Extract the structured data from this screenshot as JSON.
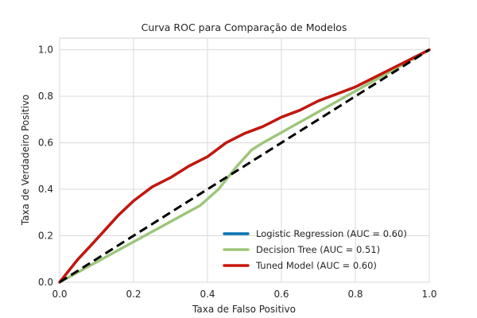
{
  "chart_data": {
    "type": "line",
    "title": "Curva ROC para Comparação de Modelos",
    "xlabel": "Taxa de Falso Positivo",
    "ylabel": "Taxa de Verdadeiro Positivo",
    "xlim": [
      0.0,
      1.0
    ],
    "ylim": [
      0.0,
      1.05
    ],
    "xticks": [
      0.0,
      0.2,
      0.4,
      0.6,
      0.8,
      1.0
    ],
    "yticks": [
      0.0,
      0.2,
      0.4,
      0.6,
      0.8,
      1.0
    ],
    "xtick_labels": [
      "0.0",
      "0.2",
      "0.4",
      "0.6",
      "0.8",
      "1.0"
    ],
    "ytick_labels": [
      "0.0",
      "0.2",
      "0.4",
      "0.6",
      "0.8",
      "1.0"
    ],
    "grid": true,
    "legend_position": "lower-right",
    "series": [
      {
        "name": "Logistic Regression (AUC = 0.60)",
        "color": "#0072b2",
        "x": [
          0.0,
          0.02,
          0.05,
          0.08,
          0.12,
          0.16,
          0.2,
          0.25,
          0.3,
          0.35,
          0.4,
          0.45,
          0.5,
          0.55,
          0.6,
          0.65,
          0.7,
          0.75,
          0.8,
          0.85,
          0.9,
          0.95,
          1.0
        ],
        "y": [
          0.0,
          0.04,
          0.1,
          0.15,
          0.22,
          0.29,
          0.35,
          0.41,
          0.45,
          0.5,
          0.54,
          0.6,
          0.64,
          0.67,
          0.71,
          0.74,
          0.78,
          0.81,
          0.84,
          0.88,
          0.92,
          0.96,
          1.0
        ]
      },
      {
        "name": "Decision Tree (AUC = 0.51)",
        "color": "#9dc67a",
        "x": [
          0.0,
          0.38,
          0.43,
          0.48,
          0.52,
          0.55,
          1.0
        ],
        "y": [
          0.0,
          0.33,
          0.4,
          0.5,
          0.57,
          0.6,
          1.0
        ]
      },
      {
        "name": "Tuned Model (AUC = 0.60)",
        "color": "#c8150a",
        "x": [
          0.0,
          0.02,
          0.05,
          0.08,
          0.12,
          0.16,
          0.2,
          0.25,
          0.3,
          0.35,
          0.4,
          0.45,
          0.5,
          0.55,
          0.6,
          0.65,
          0.7,
          0.75,
          0.8,
          0.85,
          0.9,
          0.95,
          1.0
        ],
        "y": [
          0.0,
          0.04,
          0.1,
          0.15,
          0.22,
          0.29,
          0.35,
          0.41,
          0.45,
          0.5,
          0.54,
          0.6,
          0.64,
          0.67,
          0.71,
          0.74,
          0.78,
          0.81,
          0.84,
          0.88,
          0.92,
          0.96,
          1.0
        ]
      }
    ],
    "reference_line": {
      "style": "dashed",
      "color": "#000000",
      "x": [
        0.0,
        1.0
      ],
      "y": [
        0.0,
        1.0
      ]
    }
  }
}
